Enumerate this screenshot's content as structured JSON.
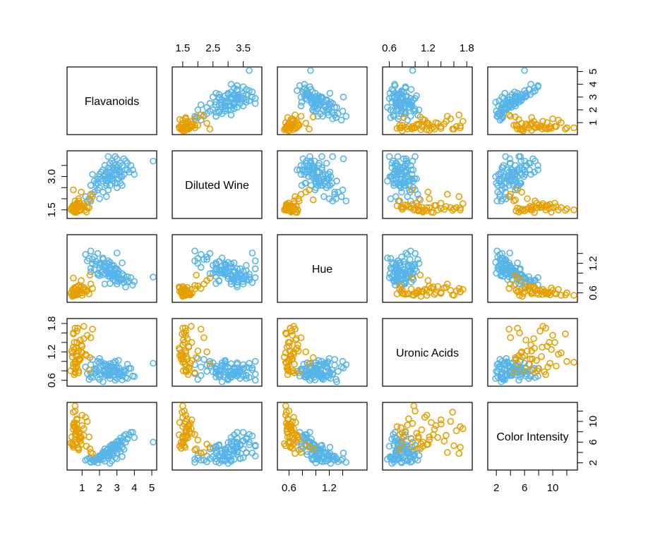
{
  "chart_data": {
    "type": "scatter",
    "variables": [
      {
        "name": "Flavanoids",
        "range": [
          0.34,
          5.08
        ],
        "ticks": [
          1,
          2,
          3,
          4,
          5
        ]
      },
      {
        "name": "Diluted Wine",
        "range": [
          1.27,
          4.0
        ],
        "ticks": [
          1.5,
          2.0,
          2.5,
          3.0,
          3.5
        ]
      },
      {
        "name": "Hue",
        "range": [
          0.48,
          1.71
        ],
        "ticks": [
          0.6,
          0.8,
          1.0,
          1.2,
          1.4
        ]
      },
      {
        "name": "Uronic Acids",
        "range": [
          0.55,
          1.83
        ],
        "ticks": [
          0.6,
          0.8,
          1.0,
          1.2,
          1.4,
          1.6,
          1.8
        ]
      },
      {
        "name": "Color Intensity",
        "range": [
          1.28,
          13.0
        ],
        "ticks": [
          2,
          4,
          6,
          8,
          10,
          12
        ]
      }
    ],
    "tick_labels": {
      "0": [
        "1",
        "2",
        "3",
        "4",
        "5"
      ],
      "1": [
        "1.5",
        "3.0"
      ],
      "1x": [
        "1.5",
        "2.5",
        "3.5"
      ],
      "2": [
        "0.6",
        "1.2"
      ],
      "2x": [
        "0.6",
        "1.2"
      ],
      "3": [
        "0.6",
        "1.2",
        "1.8"
      ],
      "3x": [
        "0.6",
        "1.2",
        "1.8"
      ],
      "4": [
        "2",
        "6",
        "10"
      ],
      "4x": [
        "2",
        "6",
        "10"
      ]
    },
    "groups": [
      {
        "color": "#56B4E9",
        "points": [
          [
            2.6,
            3.2,
            1.05,
            0.74,
            4.4
          ],
          [
            2.3,
            2.9,
            1.0,
            0.78,
            3.9
          ],
          [
            3.0,
            3.3,
            0.92,
            0.86,
            5.2
          ],
          [
            2.8,
            3.4,
            0.95,
            0.8,
            5.6
          ],
          [
            2.9,
            3.1,
            1.1,
            0.72,
            4.7
          ],
          [
            3.3,
            3.5,
            0.88,
            0.69,
            6.2
          ],
          [
            2.4,
            2.8,
            1.04,
            0.92,
            3.8
          ],
          [
            2.6,
            2.9,
            1.12,
            0.95,
            4.1
          ],
          [
            3.2,
            3.6,
            0.86,
            0.71,
            6.8
          ],
          [
            2.7,
            3.0,
            0.94,
            0.88,
            5.0
          ],
          [
            3.1,
            3.3,
            0.91,
            0.74,
            5.7
          ],
          [
            2.5,
            3.2,
            1.02,
            0.83,
            4.6
          ],
          [
            2.9,
            2.7,
            0.84,
            0.67,
            5.4
          ],
          [
            3.4,
            3.8,
            0.81,
            0.82,
            7.2
          ],
          [
            2.1,
            2.9,
            1.18,
            0.99,
            3.5
          ],
          [
            2.4,
            2.6,
            1.07,
            0.75,
            4.4
          ],
          [
            2.8,
            3.4,
            0.98,
            0.81,
            5.3
          ],
          [
            3.0,
            3.1,
            0.78,
            0.79,
            6.1
          ],
          [
            3.5,
            3.7,
            0.86,
            0.66,
            7.5
          ],
          [
            2.3,
            3.0,
            1.0,
            0.72,
            3.6
          ],
          [
            2.9,
            3.3,
            0.96,
            0.77,
            4.9
          ],
          [
            2.6,
            3.3,
            1.09,
            0.7,
            4.2
          ],
          [
            3.2,
            3.0,
            0.89,
            0.77,
            5.9
          ],
          [
            3.6,
            3.6,
            0.93,
            0.64,
            6.6
          ],
          [
            2.0,
            2.5,
            1.16,
            0.97,
            3.2
          ],
          [
            2.7,
            2.9,
            1.01,
            0.85,
            4.5
          ],
          [
            3.1,
            3.5,
            0.83,
            0.73,
            6.3
          ],
          [
            3.9,
            3.3,
            0.76,
            0.69,
            7.9
          ],
          [
            2.2,
            2.8,
            1.14,
            0.9,
            3.8
          ],
          [
            2.8,
            3.1,
            0.97,
            0.8,
            5.6
          ],
          [
            5.08,
            3.7,
            0.92,
            0.96,
            6.0
          ],
          [
            2.5,
            2.4,
            0.99,
            0.91,
            4.7
          ],
          [
            1.8,
            2.7,
            1.24,
            0.82,
            3.1
          ],
          [
            2.4,
            2.1,
            1.12,
            0.7,
            3.9
          ],
          [
            3.0,
            2.5,
            1.0,
            0.78,
            4.8
          ],
          [
            2.6,
            3.6,
            1.05,
            0.88,
            4.0
          ],
          [
            2.9,
            3.9,
            0.91,
            0.6,
            5.2
          ],
          [
            1.6,
            2.2,
            1.28,
            1.04,
            2.5
          ],
          [
            3.7,
            3.2,
            0.84,
            0.85,
            7.4
          ],
          [
            2.2,
            3.3,
            0.97,
            0.78,
            4.1
          ],
          [
            1.4,
            2.0,
            1.3,
            0.62,
            2.9
          ],
          [
            2.0,
            2.0,
            1.2,
            1.06,
            3.4
          ],
          [
            1.9,
            2.4,
            1.4,
            1.0,
            2.8
          ],
          [
            1.5,
            1.9,
            1.45,
            0.93,
            2.1
          ],
          [
            1.2,
            2.1,
            1.38,
            0.88,
            2.5
          ],
          [
            1.7,
            2.3,
            1.33,
            0.79,
            2.2
          ],
          [
            1.3,
            1.9,
            1.25,
            0.74,
            2.7
          ],
          [
            2.2,
            2.3,
            1.28,
            0.92,
            3.3
          ],
          [
            1.8,
            2.6,
            1.18,
            0.85,
            2.8
          ],
          [
            2.4,
            2.7,
            1.06,
            0.7,
            3.4
          ],
          [
            2.0,
            3.0,
            1.11,
            0.62,
            3.0
          ],
          [
            1.6,
            3.1,
            1.19,
            0.66,
            2.6
          ],
          [
            2.1,
            3.2,
            1.02,
            0.74,
            2.7
          ],
          [
            2.5,
            3.4,
            0.94,
            0.77,
            2.9
          ],
          [
            1.7,
            2.8,
            1.07,
            0.84,
            2.4
          ],
          [
            2.3,
            3.1,
            1.14,
            0.95,
            2.3
          ],
          [
            2.8,
            3.3,
            0.87,
            0.97,
            3.6
          ],
          [
            1.9,
            2.7,
            1.0,
            0.79,
            2.0
          ],
          [
            2.0,
            3.1,
            0.95,
            0.72,
            2.6
          ],
          [
            2.6,
            3.0,
            1.22,
            0.64,
            1.9
          ],
          [
            2.7,
            2.9,
            1.16,
            0.89,
            2.4
          ],
          [
            2.9,
            3.5,
            1.04,
            0.93,
            3.0
          ],
          [
            1.5,
            2.6,
            1.1,
            0.67,
            2.2
          ],
          [
            2.2,
            2.8,
            1.31,
            0.57,
            2.7
          ],
          [
            2.4,
            3.2,
            1.21,
            0.75,
            3.8
          ],
          [
            3.0,
            3.4,
            1.09,
            0.64,
            2.8
          ],
          [
            3.3,
            3.0,
            0.99,
            0.61,
            3.2
          ],
          [
            3.2,
            3.2,
            0.87,
            0.72,
            4.2
          ],
          [
            2.6,
            2.6,
            0.79,
            0.83,
            5.2
          ],
          [
            3.1,
            3.2,
            0.9,
            0.87,
            6.1
          ],
          [
            2.8,
            2.8,
            1.0,
            0.97,
            4.3
          ],
          [
            3.6,
            3.3,
            0.82,
            0.94,
            6.7
          ],
          [
            2.9,
            3.9,
            1.09,
            1.0,
            5.4
          ],
          [
            3.4,
            3.1,
            0.95,
            0.79,
            4.6
          ],
          [
            3.2,
            2.7,
            0.85,
            0.73,
            5.5
          ],
          [
            2.5,
            2.9,
            1.19,
            0.71,
            3.5
          ],
          [
            2.7,
            3.7,
            0.98,
            0.86,
            5.5
          ],
          [
            3.0,
            2.7,
            1.07,
            0.81,
            5.3
          ],
          [
            3.5,
            3.3,
            0.72,
            0.79,
            6.0
          ],
          [
            3.8,
            3.5,
            0.91,
            0.85,
            7.9
          ],
          [
            4.0,
            3.1,
            0.83,
            0.68,
            6.9
          ],
          [
            3.3,
            2.6,
            1.21,
            0.77,
            5.0
          ],
          [
            2.8,
            3.6,
            1.16,
            0.7,
            3.9
          ],
          [
            2.3,
            3.5,
            0.78,
            0.84,
            4.7
          ],
          [
            2.6,
            2.6,
            0.93,
            0.9,
            3.8
          ],
          [
            3.1,
            2.9,
            1.04,
            1.02,
            4.7
          ],
          [
            1.5,
            2.6,
            1.03,
            0.75,
            2.8
          ],
          [
            1.9,
            2.9,
            0.97,
            0.66,
            2.7
          ],
          [
            2.5,
            3.9,
            1.25,
            0.73,
            3.3
          ],
          [
            3.0,
            3.8,
            1.41,
            0.86,
            3.9
          ]
        ]
      },
      {
        "color": "#E69F00",
        "points": [
          [
            0.6,
            1.5,
            0.62,
            1.7,
            9.0
          ],
          [
            0.5,
            1.7,
            0.57,
            1.3,
            8.5
          ],
          [
            0.8,
            1.6,
            0.66,
            0.8,
            7.8
          ],
          [
            0.7,
            1.8,
            0.59,
            1.4,
            10.3
          ],
          [
            0.9,
            1.5,
            0.61,
            1.05,
            7.1
          ],
          [
            0.55,
            1.4,
            0.7,
            1.25,
            9.8
          ],
          [
            1.0,
            1.6,
            0.55,
            1.18,
            11.2
          ],
          [
            0.6,
            1.9,
            0.68,
            0.76,
            7.5
          ],
          [
            0.7,
            1.6,
            0.64,
            1.64,
            8.2
          ],
          [
            0.45,
            1.5,
            0.53,
            1.09,
            5.7
          ],
          [
            0.8,
            2.0,
            0.74,
            1.22,
            6.4
          ],
          [
            0.6,
            1.55,
            0.6,
            1.0,
            12.0
          ],
          [
            1.1,
            1.65,
            0.71,
            1.48,
            7.3
          ],
          [
            0.5,
            1.7,
            0.58,
            0.88,
            9.3
          ],
          [
            0.65,
            1.45,
            0.62,
            1.12,
            6.0
          ],
          [
            1.3,
            1.6,
            0.65,
            1.55,
            10.0
          ],
          [
            0.7,
            1.75,
            0.56,
            0.96,
            9.6
          ],
          [
            0.95,
            1.5,
            0.73,
            1.35,
            6.9
          ],
          [
            0.6,
            1.62,
            0.63,
            0.78,
            8.8
          ],
          [
            0.5,
            1.55,
            0.55,
            1.6,
            5.3
          ],
          [
            0.85,
            1.8,
            0.59,
            1.02,
            7.7
          ],
          [
            1.2,
            1.5,
            0.67,
            1.15,
            10.8
          ],
          [
            0.75,
            1.58,
            0.62,
            1.7,
            5.0
          ],
          [
            0.55,
            1.68,
            0.58,
            0.72,
            9.0
          ],
          [
            0.9,
            1.52,
            0.7,
            1.45,
            6.2
          ],
          [
            0.65,
            1.72,
            0.57,
            0.85,
            8.0
          ],
          [
            0.4,
            1.6,
            0.61,
            1.22,
            7.0
          ],
          [
            0.8,
            1.45,
            0.65,
            1.05,
            4.8
          ],
          [
            1.0,
            1.7,
            0.6,
            1.32,
            9.2
          ],
          [
            0.6,
            1.58,
            0.68,
            0.94,
            6.6
          ],
          [
            0.5,
            1.48,
            0.56,
            1.58,
            11.8
          ],
          [
            0.75,
            1.62,
            0.63,
            1.1,
            8.4
          ],
          [
            0.35,
            1.52,
            0.59,
            0.8,
            5.8
          ],
          [
            0.65,
            1.38,
            0.72,
            1.28,
            7.4
          ],
          [
            0.85,
            1.66,
            0.64,
            1.05,
            6.8
          ],
          [
            0.55,
            1.56,
            0.61,
            1.4,
            9.5
          ],
          [
            0.7,
            1.64,
            0.58,
            0.9,
            10.5
          ],
          [
            0.45,
            1.46,
            0.66,
            1.18,
            5.5
          ],
          [
            1.1,
            1.78,
            0.67,
            1.74,
            8.6
          ],
          [
            0.6,
            1.5,
            0.55,
            0.98,
            13.0
          ],
          [
            0.8,
            1.9,
            0.75,
            0.76,
            4.5
          ],
          [
            1.4,
            1.6,
            0.58,
            0.82,
            7.0
          ],
          [
            1.25,
            1.4,
            0.63,
            1.12,
            5.2
          ],
          [
            1.5,
            2.2,
            0.78,
            1.5,
            4.0
          ],
          [
            0.95,
            2.3,
            0.85,
            1.2,
            5.6
          ],
          [
            1.6,
            2.1,
            0.69,
            1.68,
            3.8
          ],
          [
            0.5,
            2.4,
            0.9,
            0.95,
            5.0
          ],
          [
            1.45,
            1.95,
            0.96,
            1.08,
            4.7
          ]
        ]
      }
    ]
  }
}
